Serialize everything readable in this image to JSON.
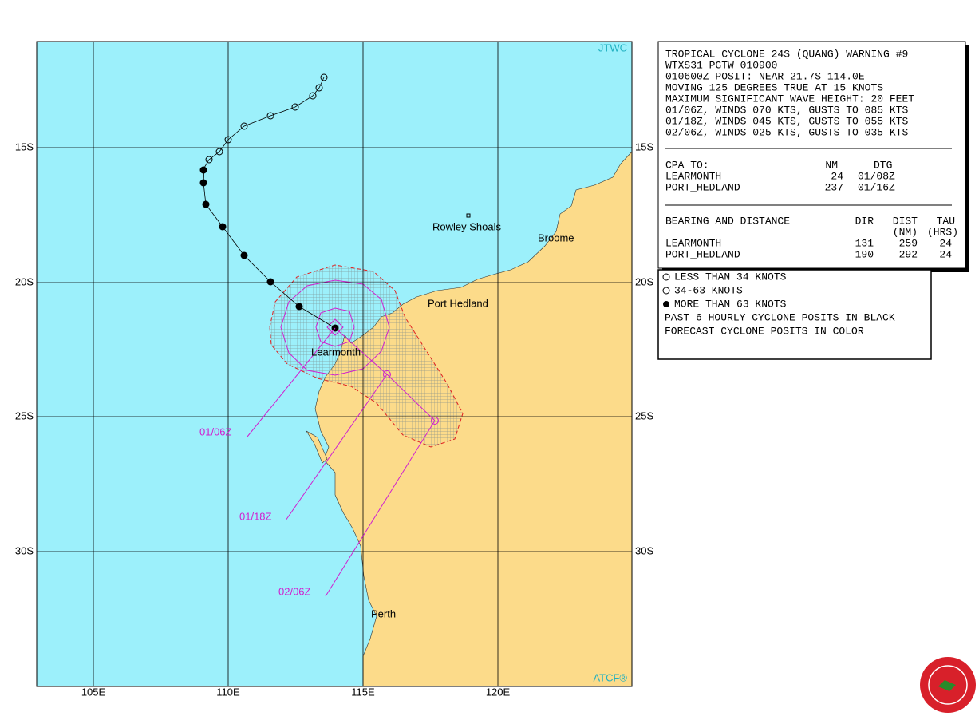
{
  "map": {
    "corner_top": "JTWC",
    "corner_bottom": "ATCF®",
    "lon_labels": [
      "105E",
      "110E",
      "115E",
      "120E"
    ],
    "lat_labels": [
      "15S",
      "20S",
      "25S",
      "30S"
    ],
    "places": [
      "Rowley Shoals",
      "Broome",
      "Port Hedland",
      "Learmonth",
      "Perth"
    ],
    "forecast_labels": [
      "01/06Z",
      "01/18Z",
      "02/06Z"
    ]
  },
  "warning": {
    "lines": [
      "TROPICAL CYCLONE 24S (QUANG) WARNING #9",
      "WTXS31 PGTW 010900",
      "010600Z POSIT: NEAR 21.7S 114.0E",
      "MOVING 125 DEGREES TRUE AT 15 KNOTS",
      "MAXIMUM SIGNIFICANT WAVE HEIGHT: 20 FEET",
      "01/06Z, WINDS 070 KTS, GUSTS TO 085 KTS",
      "01/18Z, WINDS 045 KTS, GUSTS TO 055 KTS",
      "02/06Z, WINDS 025 KTS, GUSTS TO 035 KTS"
    ],
    "cpa": {
      "header": [
        "CPA TO:",
        "NM",
        "DTG"
      ],
      "rows": [
        [
          "LEARMONTH",
          "24",
          "01/08Z"
        ],
        [
          "PORT_HEDLAND",
          "237",
          "01/16Z"
        ]
      ]
    },
    "bearing": {
      "header": [
        "BEARING AND DISTANCE",
        "DIR",
        "DIST",
        "TAU"
      ],
      "subheader": [
        "(NM)",
        "(HRS)"
      ],
      "rows": [
        [
          "LEARMONTH",
          "131",
          "259",
          "24"
        ],
        [
          "PORT_HEDLAND",
          "190",
          "292",
          "24"
        ]
      ]
    }
  },
  "legend": {
    "items": [
      "LESS THAN 34 KNOTS",
      "34-63 KNOTS",
      "MORE THAN 63 KNOTS",
      "PAST 6 HOURLY CYCLONE POSITS IN BLACK",
      "FORECAST CYCLONE POSITS IN COLOR"
    ]
  }
}
